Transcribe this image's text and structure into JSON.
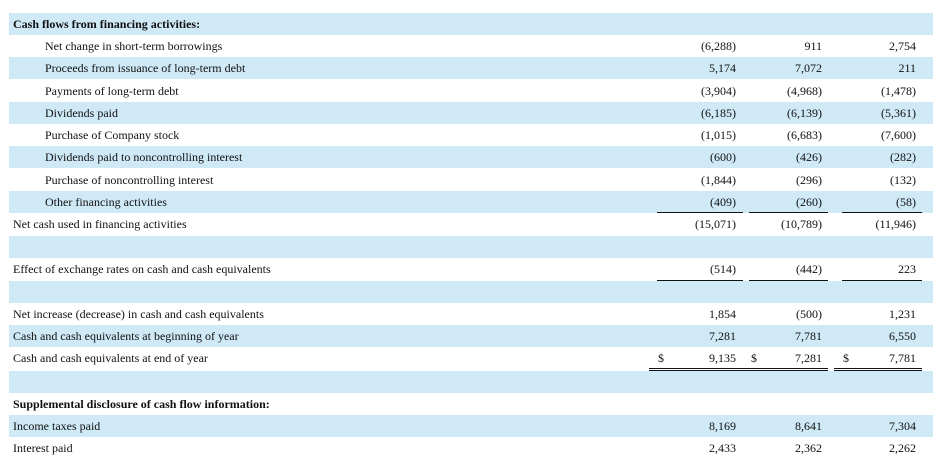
{
  "rows": [
    {
      "label": "Cash flows from financing activities:",
      "bold": true,
      "indent": false,
      "shade": true,
      "values": [
        "",
        "",
        ""
      ]
    },
    {
      "label": "Net change in short-term borrowings",
      "indent": true,
      "shade": false,
      "values": [
        "(6,288)",
        "911",
        "2,754"
      ]
    },
    {
      "label": "Proceeds from issuance of long-term debt",
      "indent": true,
      "shade": true,
      "values": [
        "5,174",
        "7,072",
        "211"
      ]
    },
    {
      "label": "Payments of long-term debt",
      "indent": true,
      "shade": false,
      "values": [
        "(3,904)",
        "(4,968)",
        "(1,478)"
      ]
    },
    {
      "label": "Dividends paid",
      "indent": true,
      "shade": true,
      "values": [
        "(6,185)",
        "(6,139)",
        "(5,361)"
      ]
    },
    {
      "label": "Purchase of Company stock",
      "indent": true,
      "shade": false,
      "values": [
        "(1,015)",
        "(6,683)",
        "(7,600)"
      ]
    },
    {
      "label": "Dividends paid to noncontrolling interest",
      "indent": true,
      "shade": true,
      "values": [
        "(600)",
        "(426)",
        "(282)"
      ]
    },
    {
      "label": "Purchase of noncontrolling interest",
      "indent": true,
      "shade": false,
      "values": [
        "(1,844)",
        "(296)",
        "(132)"
      ]
    },
    {
      "label": "Other financing activities",
      "indent": true,
      "shade": true,
      "values": [
        "(409)",
        "(260)",
        "(58)"
      ]
    },
    {
      "label": "Net cash used in financing activities",
      "indent": false,
      "shade": false,
      "values": [
        "(15,071)",
        "(10,789)",
        "(11,946)"
      ]
    },
    {
      "label": "",
      "indent": false,
      "shade": true,
      "values": [
        "",
        "",
        ""
      ]
    },
    {
      "label": "Effect of exchange rates on cash and cash equivalents",
      "indent": false,
      "shade": false,
      "values": [
        "(514)",
        "(442)",
        "223"
      ]
    },
    {
      "label": "",
      "indent": false,
      "shade": true,
      "values": [
        "",
        "",
        ""
      ]
    },
    {
      "label": "Net increase (decrease) in cash and cash equivalents",
      "indent": false,
      "shade": false,
      "values": [
        "1,854",
        "(500)",
        "1,231"
      ]
    },
    {
      "label": "Cash and cash equivalents at beginning of year",
      "indent": false,
      "shade": true,
      "values": [
        "7,281",
        "7,781",
        "6,550"
      ]
    },
    {
      "label": "Cash and cash equivalents at end of year",
      "indent": false,
      "shade": false,
      "values": [
        "9,135",
        "7,281",
        "7,781"
      ],
      "dollar": [
        "$",
        "$",
        "$"
      ]
    },
    {
      "label": "",
      "indent": false,
      "shade": true,
      "values": [
        "",
        "",
        ""
      ]
    },
    {
      "label": "Supplemental disclosure of cash flow information:",
      "bold": true,
      "indent": false,
      "shade": false,
      "values": [
        "",
        "",
        ""
      ]
    },
    {
      "label": "Income taxes paid",
      "indent": false,
      "shade": true,
      "values": [
        "8,169",
        "8,641",
        "7,304"
      ]
    },
    {
      "label": "Interest paid",
      "indent": false,
      "shade": false,
      "values": [
        "2,433",
        "2,362",
        "2,262"
      ]
    }
  ]
}
